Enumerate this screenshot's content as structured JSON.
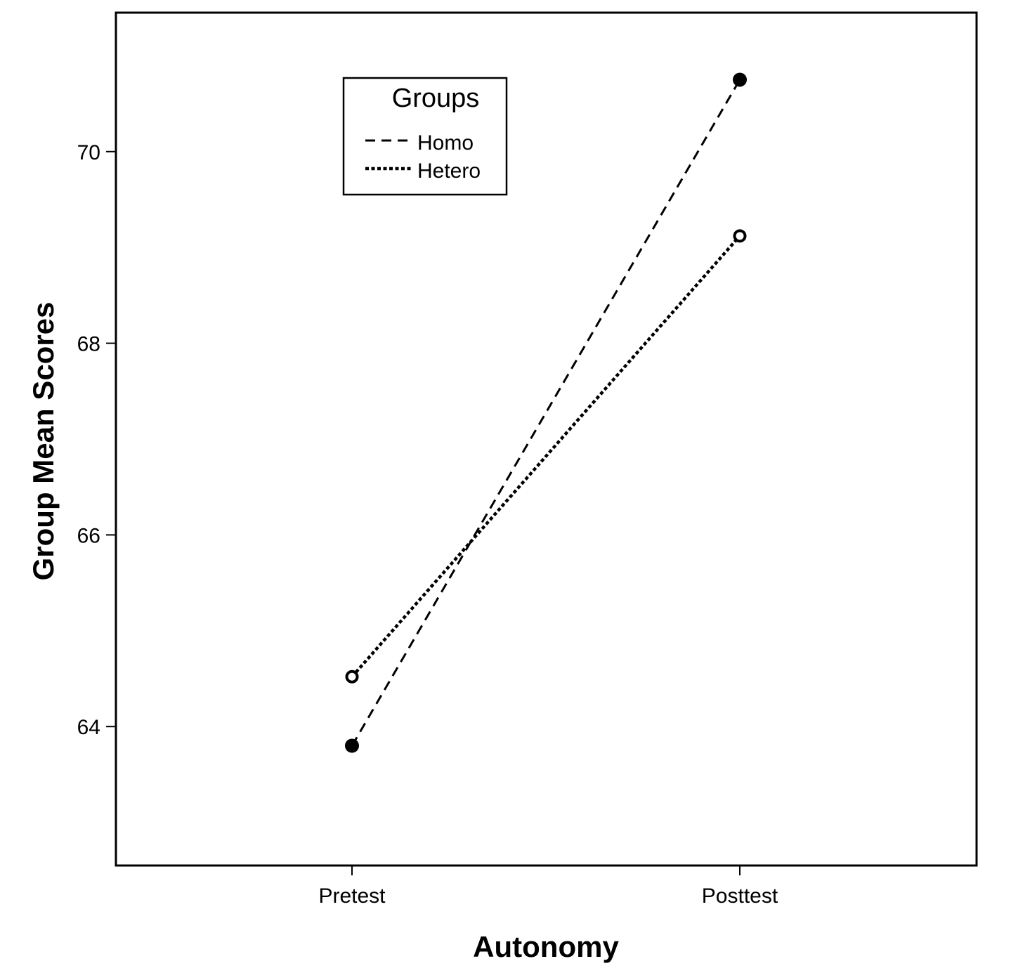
{
  "chart_data": {
    "type": "line",
    "title": "",
    "xlabel": "Autonomy",
    "ylabel": "Group Mean Scores",
    "categories": [
      "Pretest",
      "Posttest"
    ],
    "series": [
      {
        "name": "Homo",
        "values": [
          63.8,
          70.75
        ],
        "line_style": "dashed",
        "marker": "filled-circle"
      },
      {
        "name": "Hetero",
        "values": [
          64.52,
          69.12
        ],
        "line_style": "dotted",
        "marker": "open-circle"
      }
    ],
    "y_ticks": [
      64,
      66,
      68,
      70
    ],
    "ylim": [
      62.55,
      71.45
    ],
    "grid": false,
    "legend": {
      "title": "Groups",
      "placement": "top-left"
    },
    "line_color": "#000000",
    "background": "#ffffff"
  }
}
